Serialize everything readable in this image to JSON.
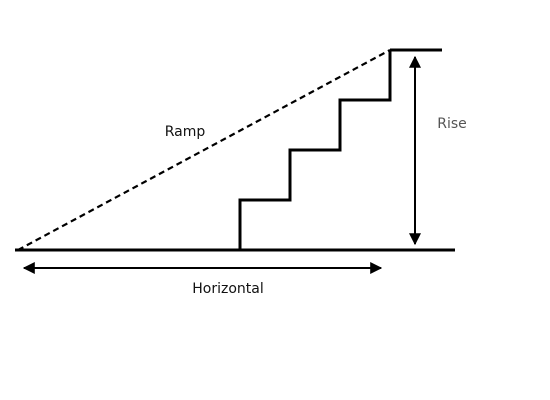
{
  "diagram": {
    "labels": {
      "ramp": "Ramp",
      "rise": "Rise",
      "horizontal": "Horizontal"
    },
    "colors": {
      "line": "#000000",
      "label_dark": "#111111",
      "label_grey": "#555555",
      "background": "#ffffff"
    },
    "step_count": 3,
    "ramp_line_style": "dashed"
  }
}
